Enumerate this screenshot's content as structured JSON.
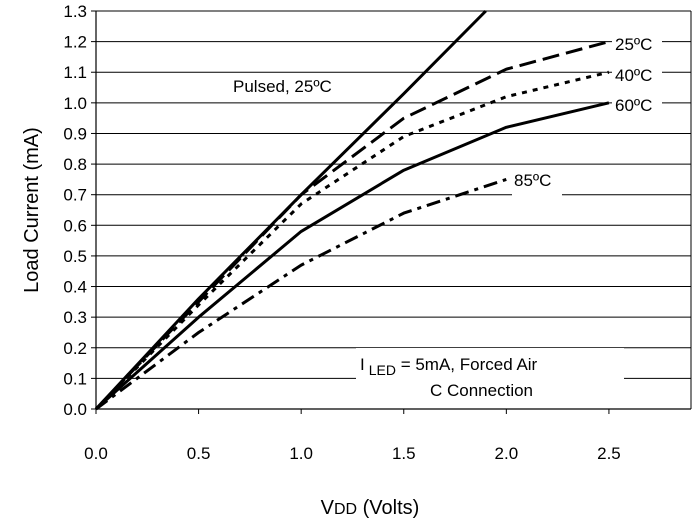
{
  "chart_data": {
    "type": "line",
    "title": "",
    "xlabel": "VDD (Volts)",
    "xlabel_main": "V",
    "xlabel_sub": "DD",
    "xlabel_rest": " (Volts)",
    "ylabel": "Load Current (mA)",
    "xlim": [
      0,
      2.9
    ],
    "ylim": [
      0,
      1.3
    ],
    "x_ticks": [
      "0.0",
      "0.5",
      "1.0",
      "1.5",
      "2.0",
      "2.5"
    ],
    "y_ticks": [
      "0.0",
      "0.1",
      "0.2",
      "0.3",
      "0.4",
      "0.5",
      "0.6",
      "0.7",
      "0.8",
      "0.9",
      "1.0",
      "1.1",
      "1.2",
      "1.3"
    ],
    "grid": "horizontal",
    "series": [
      {
        "name": "Pulsed, 25ºC",
        "style": "solid",
        "x": [
          0,
          0.5,
          1.0,
          1.5,
          1.9
        ],
        "y": [
          0,
          0.36,
          0.7,
          1.03,
          1.3
        ]
      },
      {
        "name": "25ºC",
        "style": "dash",
        "x": [
          0,
          0.5,
          1.0,
          1.5,
          2.0,
          2.5
        ],
        "y": [
          0,
          0.35,
          0.7,
          0.95,
          1.11,
          1.2
        ]
      },
      {
        "name": "40ºC",
        "style": "dot",
        "x": [
          0,
          0.5,
          1.0,
          1.5,
          2.0,
          2.5
        ],
        "y": [
          0,
          0.34,
          0.67,
          0.89,
          1.02,
          1.1
        ]
      },
      {
        "name": "60ºC",
        "style": "solid",
        "x": [
          0,
          0.5,
          1.0,
          1.5,
          2.0,
          2.5
        ],
        "y": [
          0,
          0.3,
          0.58,
          0.78,
          0.92,
          1.0
        ]
      },
      {
        "name": "85ºC",
        "style": "dashdot",
        "x": [
          0,
          0.5,
          1.0,
          1.5,
          2.0
        ],
        "y": [
          0,
          0.25,
          0.47,
          0.64,
          0.75
        ]
      }
    ],
    "annotations": {
      "pulsed": "Pulsed, 25ºC",
      "t25": "25ºC",
      "t40": "40ºC",
      "t60": "60ºC",
      "t85": "85ºC",
      "cond_prefix": "I",
      "cond_sub": "LED",
      "cond_rest": " = 5mA, Forced Air",
      "connection": "C Connection"
    }
  }
}
